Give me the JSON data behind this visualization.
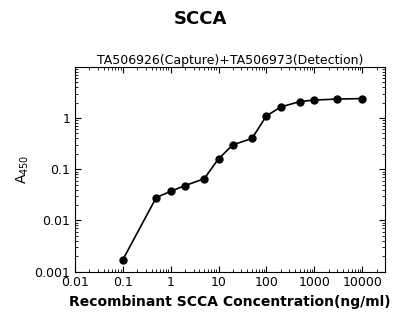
{
  "title": "SCCA",
  "subtitle": "TA506926(Capture)+TA506973(Detection)",
  "xlabel": "Recombinant SCCA Concentration(ng/ml)",
  "x_data": [
    0.1,
    0.5,
    1.0,
    2.0,
    5.0,
    10.0,
    20.0,
    50.0,
    100.0,
    200.0,
    500.0,
    1000.0,
    3000.0,
    10000.0
  ],
  "y_data": [
    0.0017,
    0.028,
    0.037,
    0.048,
    0.065,
    0.16,
    0.3,
    0.4,
    1.1,
    1.65,
    2.1,
    2.25,
    2.35,
    2.4
  ],
  "xlim": [
    0.01,
    30000
  ],
  "ylim": [
    0.001,
    10
  ],
  "line_color": "#000000",
  "marker_color": "#000000",
  "marker_size": 5,
  "line_width": 1.2,
  "title_fontsize": 13,
  "subtitle_fontsize": 9,
  "xlabel_fontsize": 10,
  "ylabel_fontsize": 10,
  "tick_fontsize": 9,
  "background_color": "#ffffff"
}
